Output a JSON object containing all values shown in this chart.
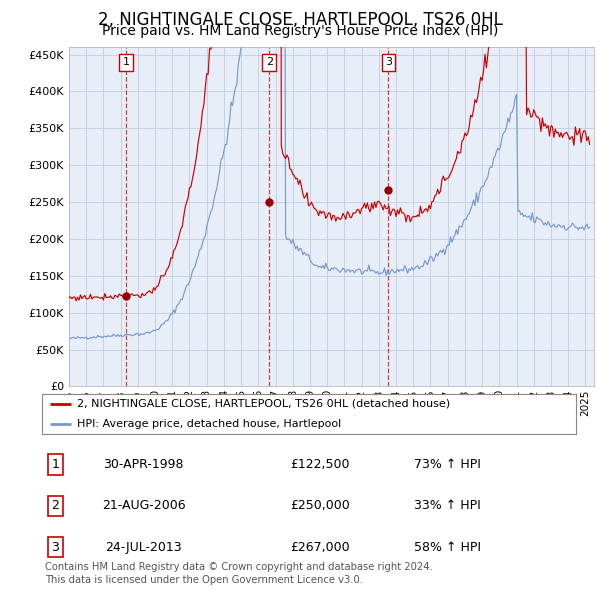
{
  "title": "2, NIGHTINGALE CLOSE, HARTLEPOOL, TS26 0HL",
  "subtitle": "Price paid vs. HM Land Registry's House Price Index (HPI)",
  "ylabel_ticks": [
    "£0",
    "£50K",
    "£100K",
    "£150K",
    "£200K",
    "£250K",
    "£300K",
    "£350K",
    "£400K",
    "£450K"
  ],
  "ytick_values": [
    0,
    50000,
    100000,
    150000,
    200000,
    250000,
    300000,
    350000,
    400000,
    450000
  ],
  "ylim": [
    0,
    460000
  ],
  "xlim_start": 1995.0,
  "xlim_end": 2025.5,
  "sale_color": "#cc0000",
  "hpi_color": "#7799cc",
  "chart_bg": "#e8eef8",
  "sale_label": "2, NIGHTINGALE CLOSE, HARTLEPOOL, TS26 0HL (detached house)",
  "hpi_label": "HPI: Average price, detached house, Hartlepool",
  "sales": [
    {
      "date_num": 1998.33,
      "price": 122500,
      "label": "1"
    },
    {
      "date_num": 2006.63,
      "price": 250000,
      "label": "2"
    },
    {
      "date_num": 2013.56,
      "price": 267000,
      "label": "3"
    }
  ],
  "sale_rows": [
    {
      "num": "1",
      "date": "30-APR-1998",
      "price": "£122,500",
      "hpi": "73% ↑ HPI"
    },
    {
      "num": "2",
      "date": "21-AUG-2006",
      "price": "£250,000",
      "hpi": "33% ↑ HPI"
    },
    {
      "num": "3",
      "date": "24-JUL-2013",
      "price": "£267,000",
      "hpi": "58% ↑ HPI"
    }
  ],
  "footnote1": "Contains HM Land Registry data © Crown copyright and database right 2024.",
  "footnote2": "This data is licensed under the Open Government Licence v3.0.",
  "background_color": "#ffffff",
  "grid_color": "#c0cce0",
  "title_fontsize": 12,
  "subtitle_fontsize": 10
}
